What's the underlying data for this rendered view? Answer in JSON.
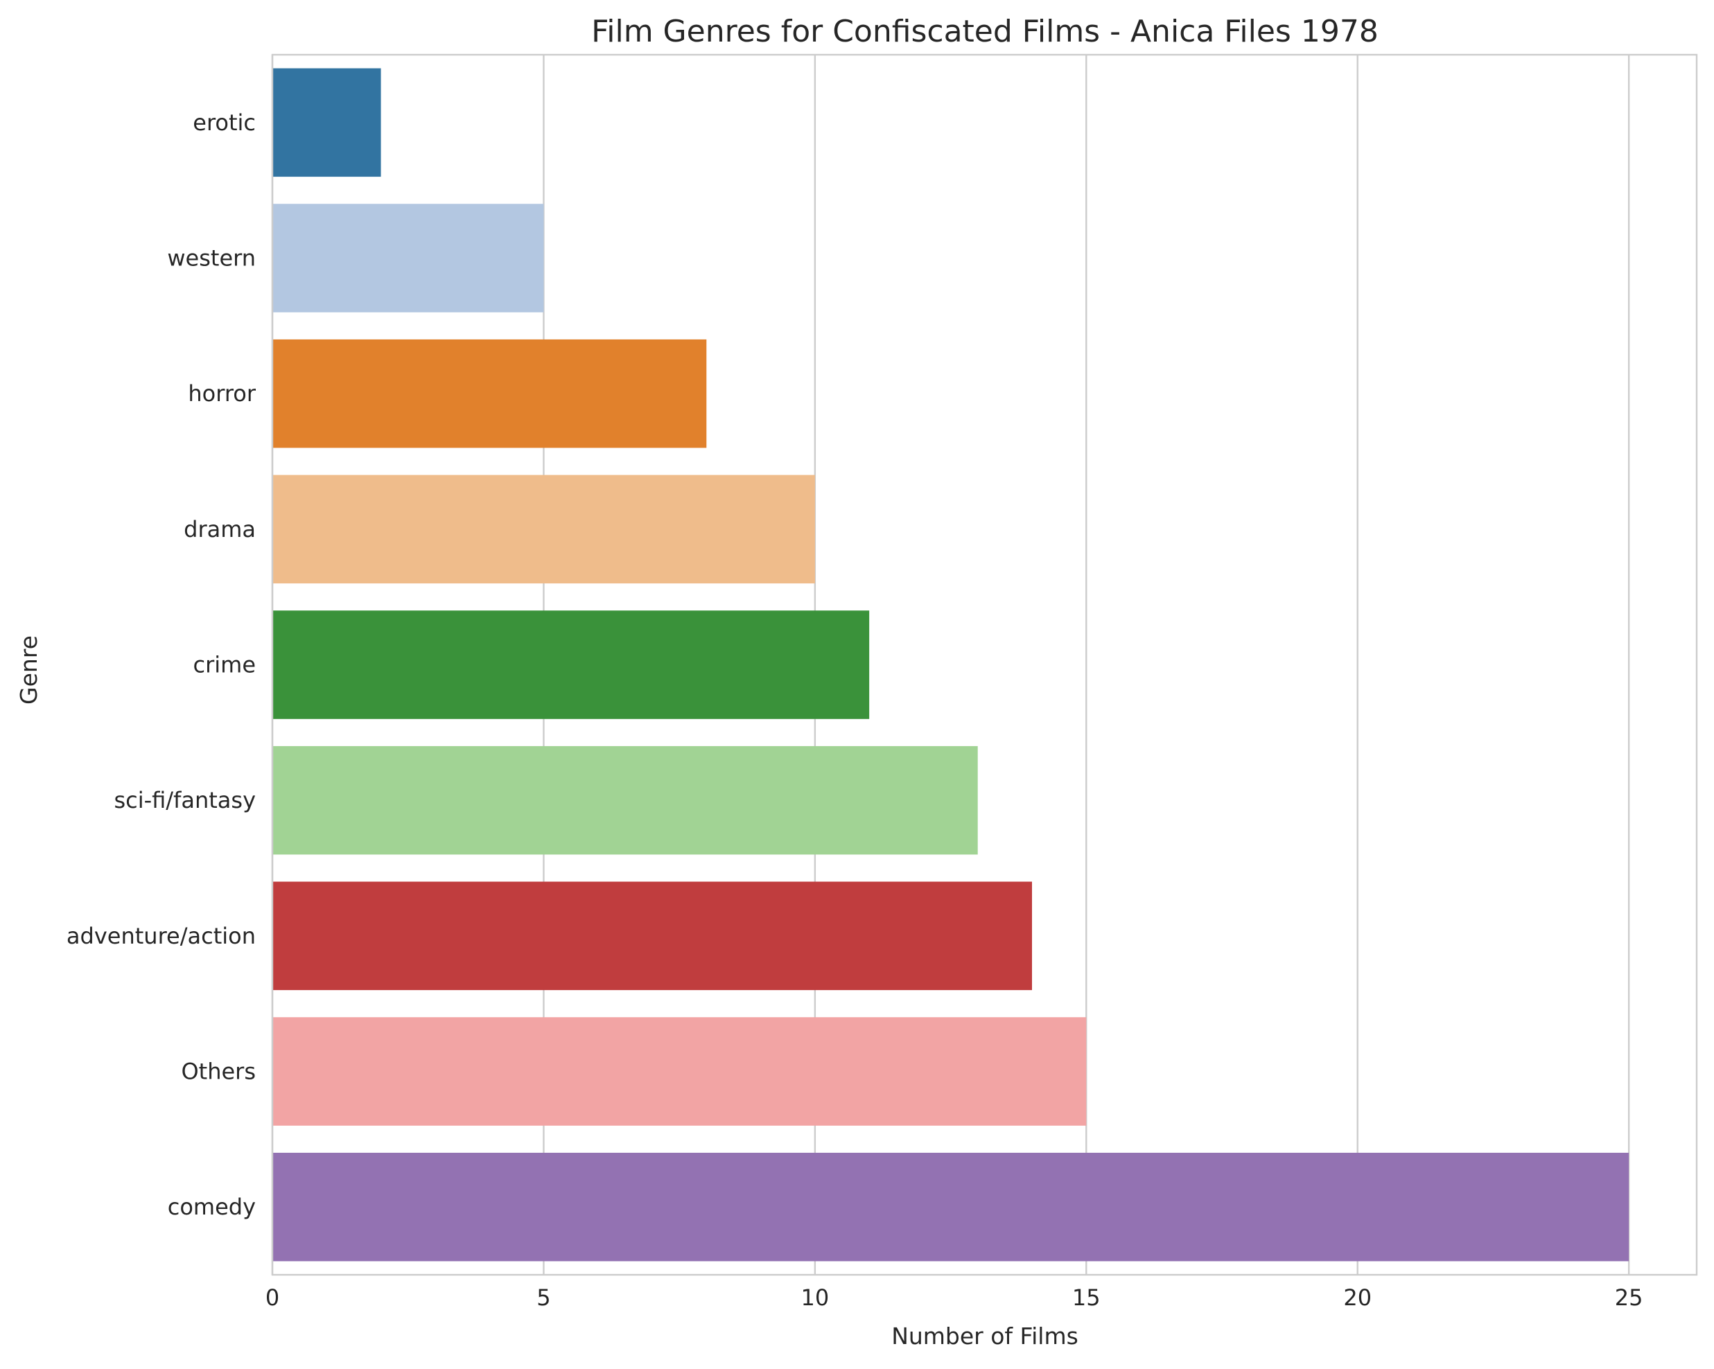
{
  "chart_data": {
    "type": "bar",
    "orientation": "horizontal",
    "title": "Film Genres for Confiscated Films - Anica Files 1978",
    "xlabel": "Number of Films",
    "ylabel": "Genre",
    "categories": [
      "erotic",
      "western",
      "horror",
      "drama",
      "crime",
      "sci-fi/fantasy",
      "adventure/action",
      "Others",
      "comedy"
    ],
    "values": [
      2,
      5,
      8,
      10,
      11,
      13,
      14,
      15,
      25
    ],
    "colors": [
      "#3274a1",
      "#b3c7e1",
      "#e1812c",
      "#efbc8b",
      "#3a923a",
      "#a1d394",
      "#c03d3e",
      "#f2a4a4",
      "#9372b2"
    ],
    "xlim": [
      0,
      26.25
    ],
    "xticks": [
      0,
      5,
      10,
      15,
      20,
      25
    ],
    "grid": "vertical",
    "legend": "none"
  }
}
